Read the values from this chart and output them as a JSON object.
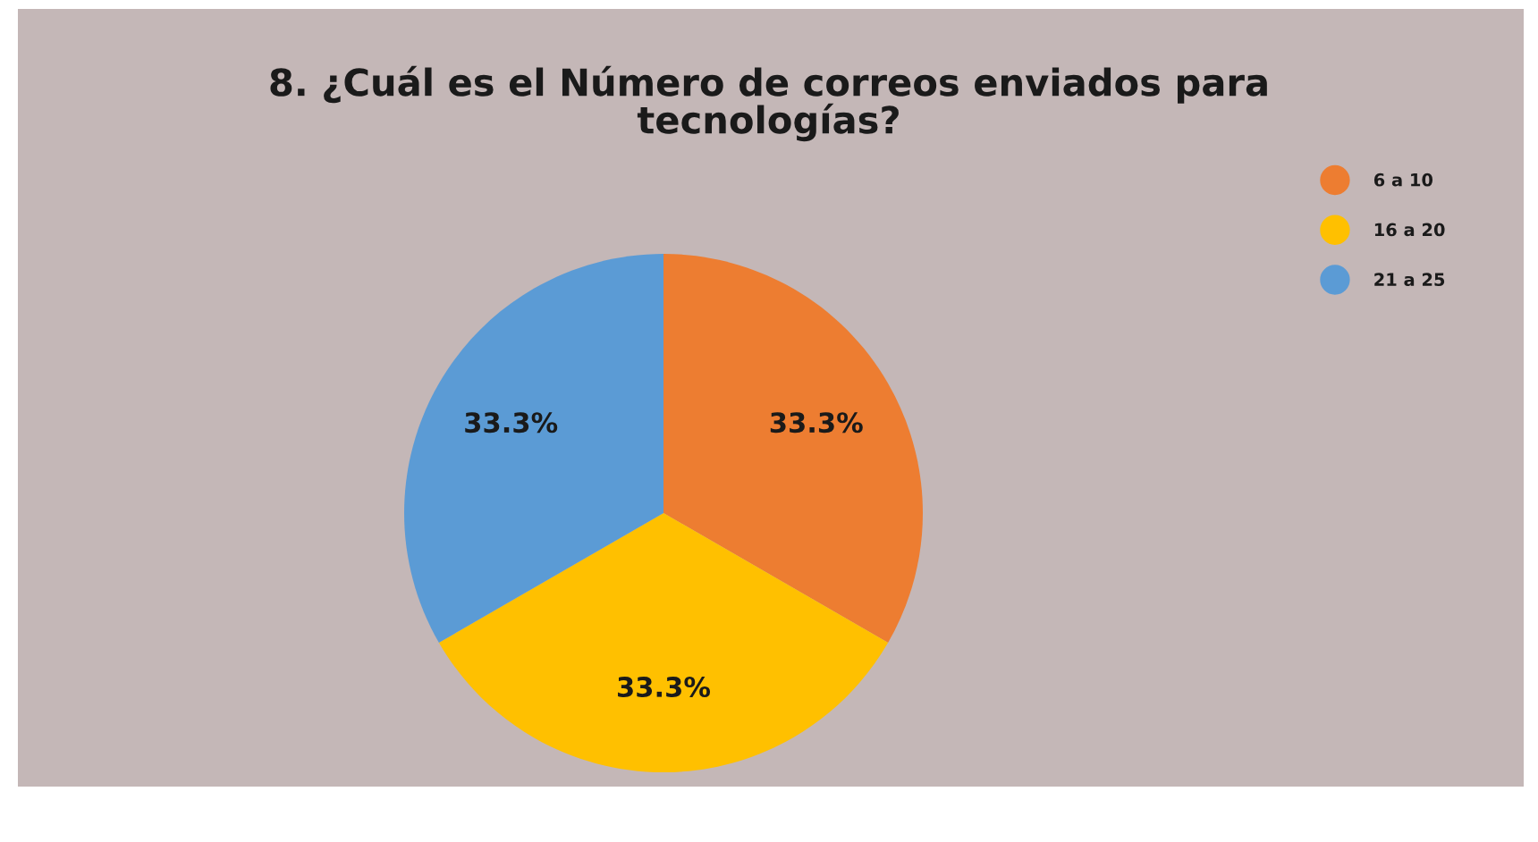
{
  "chart_data": {
    "type": "pie",
    "title": "8. ¿Cuál es el Número de correos enviados para\ntecnologías?",
    "categories": [
      "6 a 10",
      "16 a 20",
      "21 a 25"
    ],
    "values": [
      33.3,
      33.3,
      33.3
    ],
    "colors": [
      "#ed7d31",
      "#ffc000",
      "#5b9bd5"
    ],
    "value_labels": [
      "33.3%",
      "33.3%",
      "33.3%"
    ],
    "legend": "top right"
  }
}
